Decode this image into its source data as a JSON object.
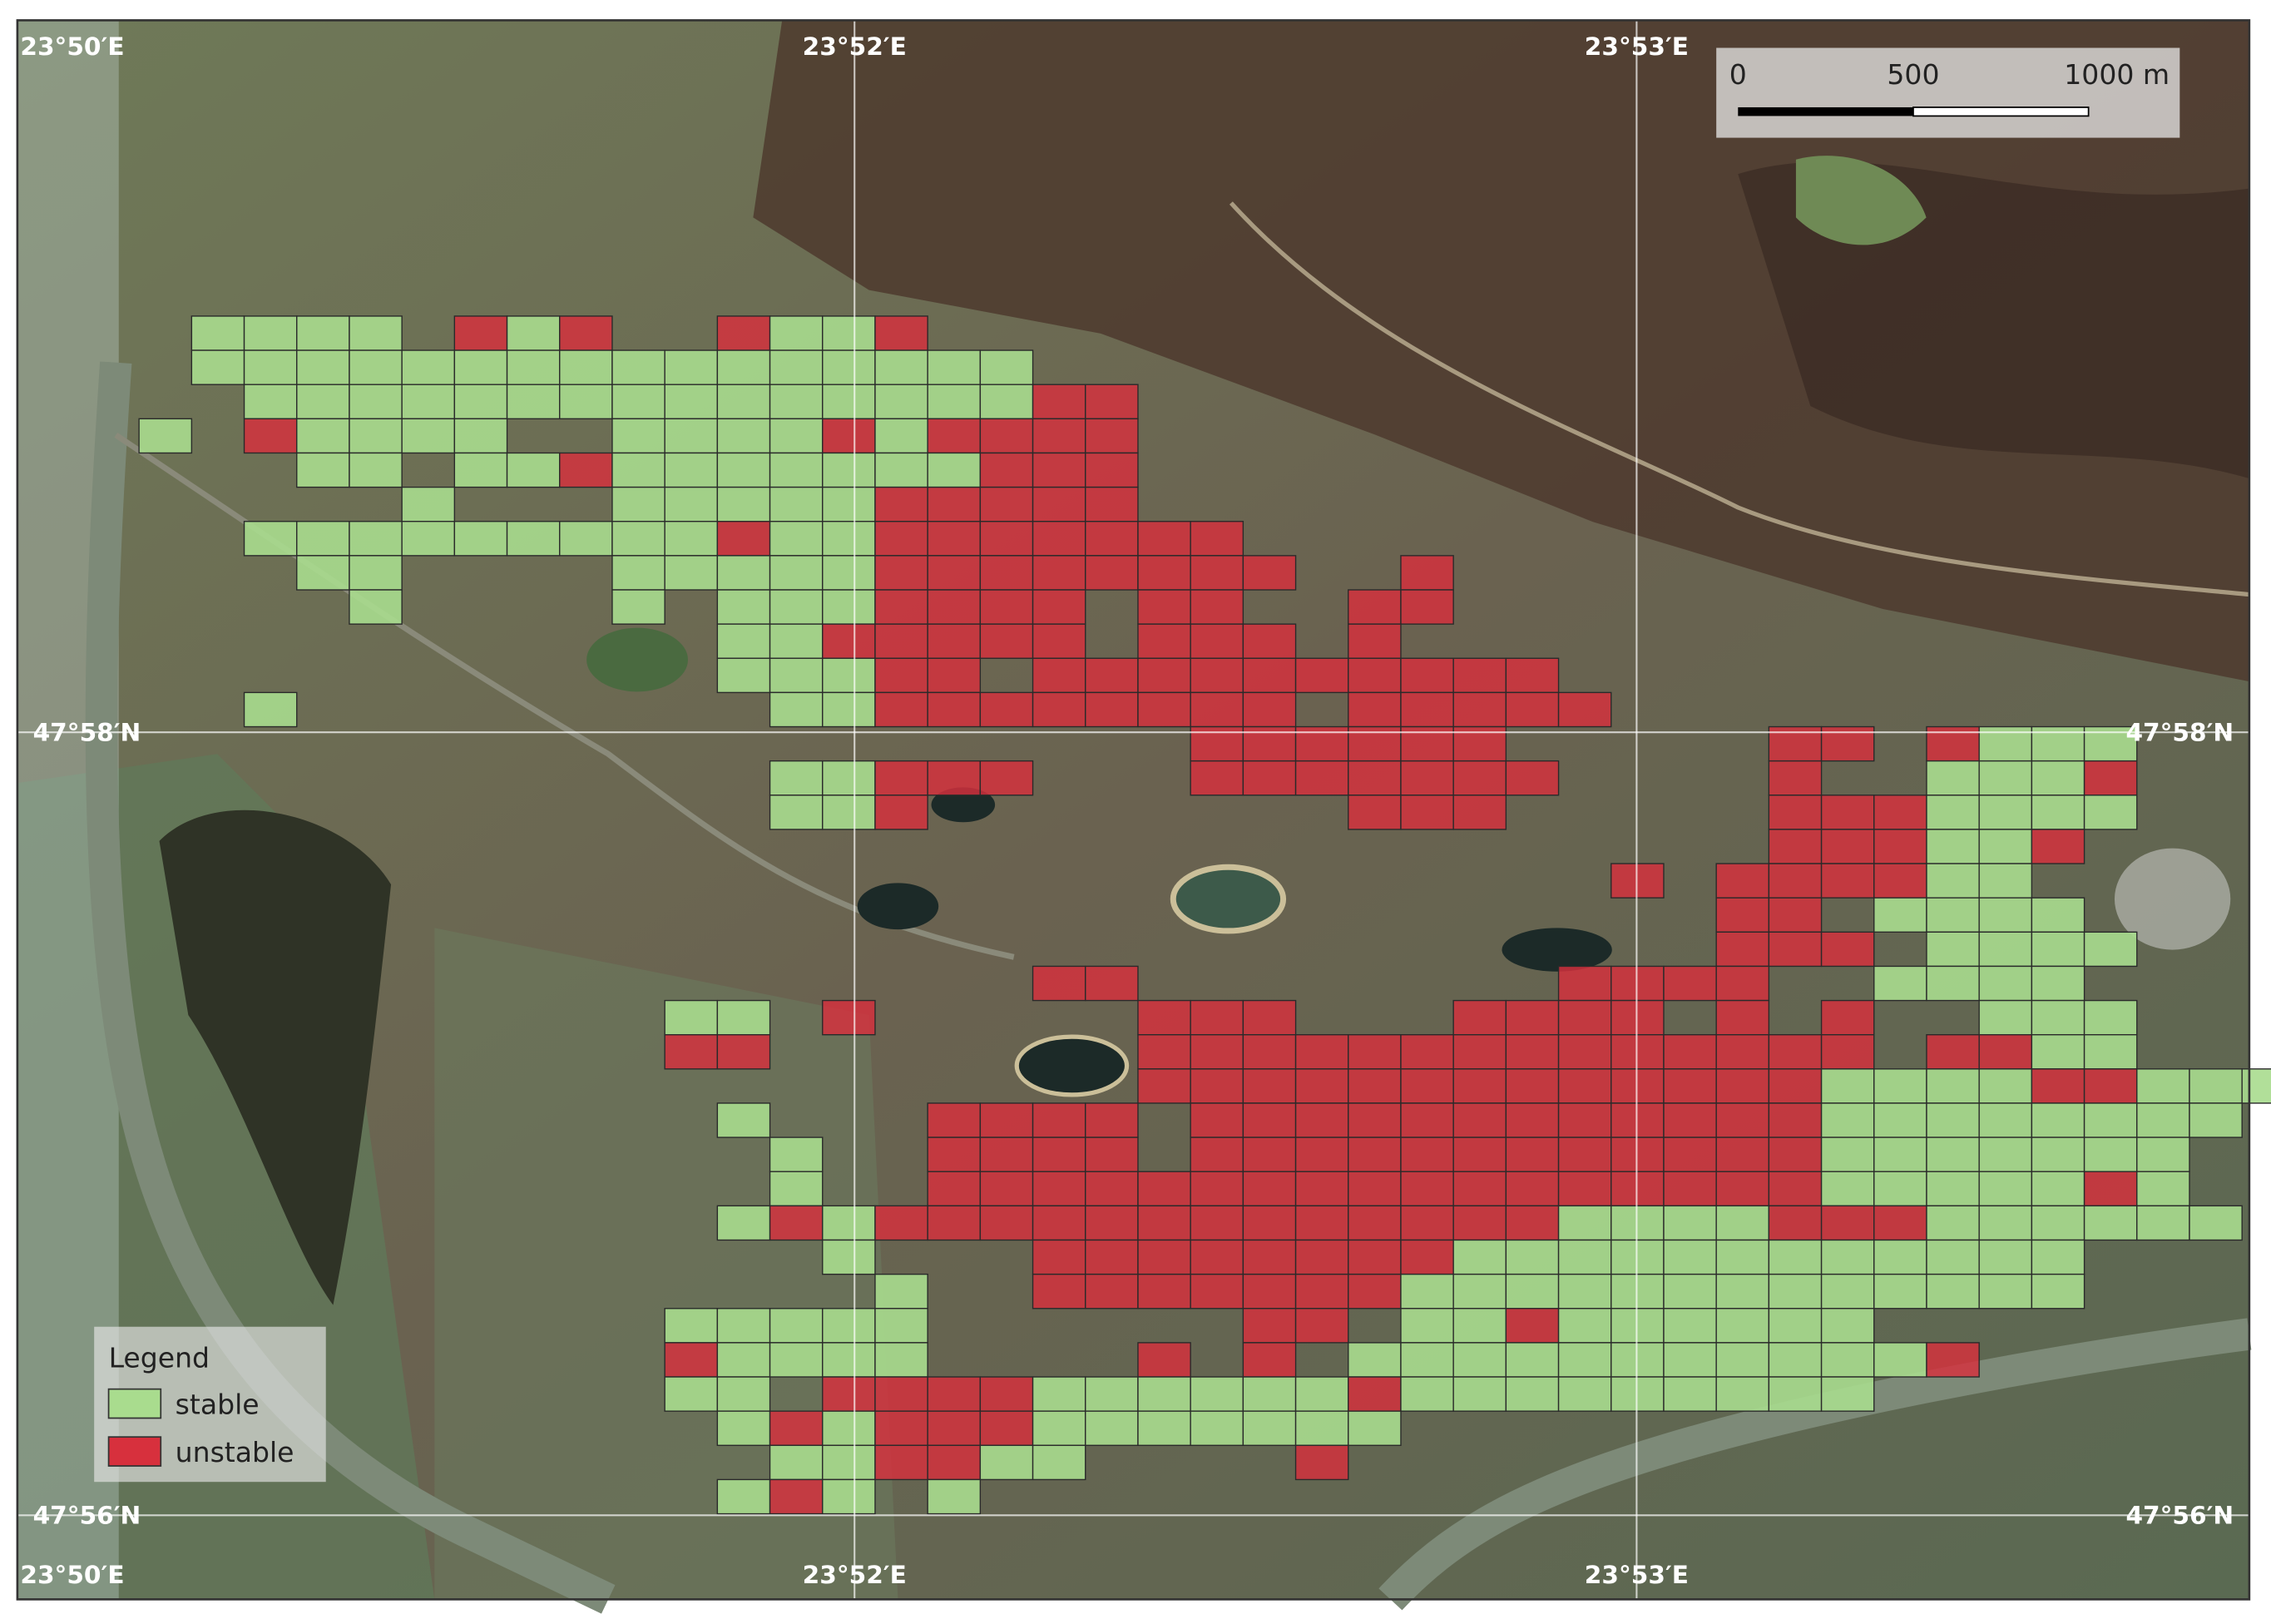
{
  "map": {
    "graticule": {
      "top": [
        "23°50′E",
        "23°52′E",
        "23°53′E"
      ],
      "bottom": [
        "23°50′E",
        "23°52′E",
        "23°53′E"
      ],
      "left": [
        "47°58′N",
        "47°56′N"
      ],
      "right": [
        "47°58′N",
        "47°56′N"
      ]
    },
    "scale_bar": {
      "labels": [
        "0",
        "500",
        "1000 m"
      ]
    },
    "legend": {
      "title": "Legend",
      "items": [
        {
          "label": "stable",
          "color": "#a9dc8e"
        },
        {
          "label": "unstable",
          "color": "#d7303d"
        }
      ]
    }
  }
}
